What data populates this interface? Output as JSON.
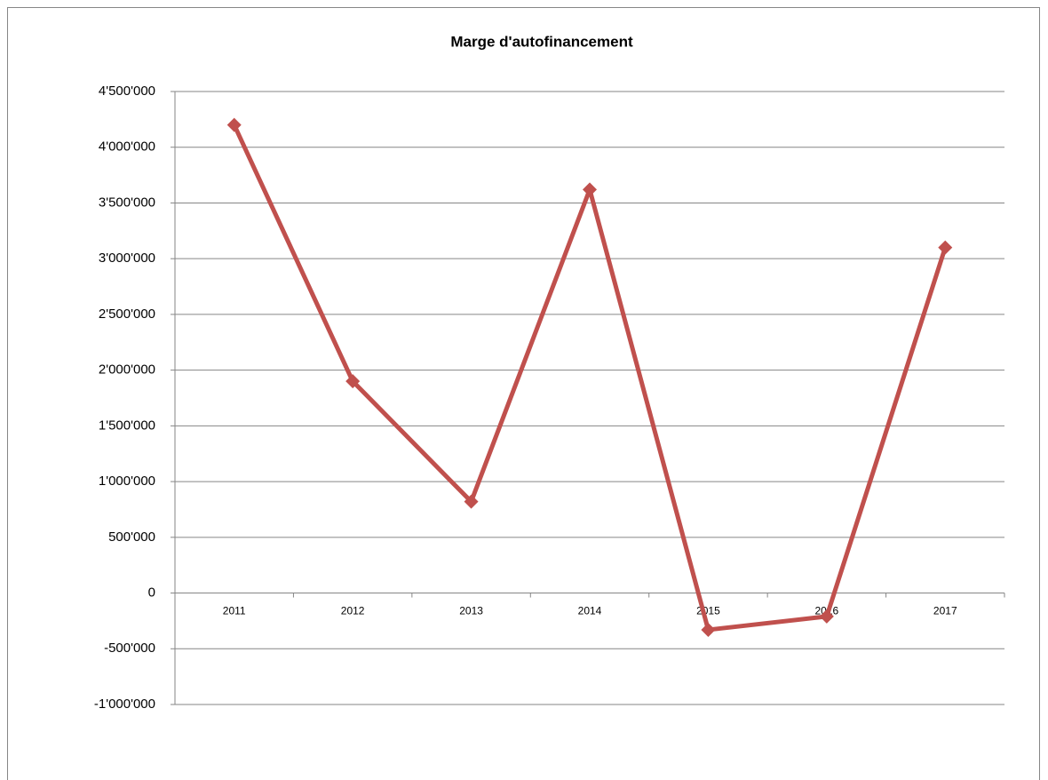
{
  "chart_data": {
    "type": "line",
    "title": "Marge d'autofinancement",
    "categories": [
      "2011",
      "2012",
      "2013",
      "2014",
      "2015",
      "2016",
      "2017"
    ],
    "series": [
      {
        "name": "Marge d'autofinancement",
        "color": "#c0504d",
        "values": [
          4200000,
          1900000,
          820000,
          3620000,
          -330000,
          -210000,
          3100000
        ]
      }
    ],
    "ylim": [
      -1000000,
      4500000
    ],
    "yticks": [
      {
        "value": -1000000,
        "label": "-1'000'000"
      },
      {
        "value": -500000,
        "label": "-500'000"
      },
      0,
      {
        "value": 500000,
        "label": "500'000"
      },
      {
        "value": 1000000,
        "label": "1'000'000"
      },
      {
        "value": 1500000,
        "label": "1'500'000"
      },
      {
        "value": 2000000,
        "label": "2'000'000"
      },
      {
        "value": 2500000,
        "label": "2'500'000"
      },
      {
        "value": 3000000,
        "label": "3'000'000"
      },
      {
        "value": 3500000,
        "label": "3'500'000"
      },
      {
        "value": 4000000,
        "label": "4'000'000"
      },
      {
        "value": 4500000,
        "label": "4'500'000"
      }
    ],
    "grid": true
  }
}
